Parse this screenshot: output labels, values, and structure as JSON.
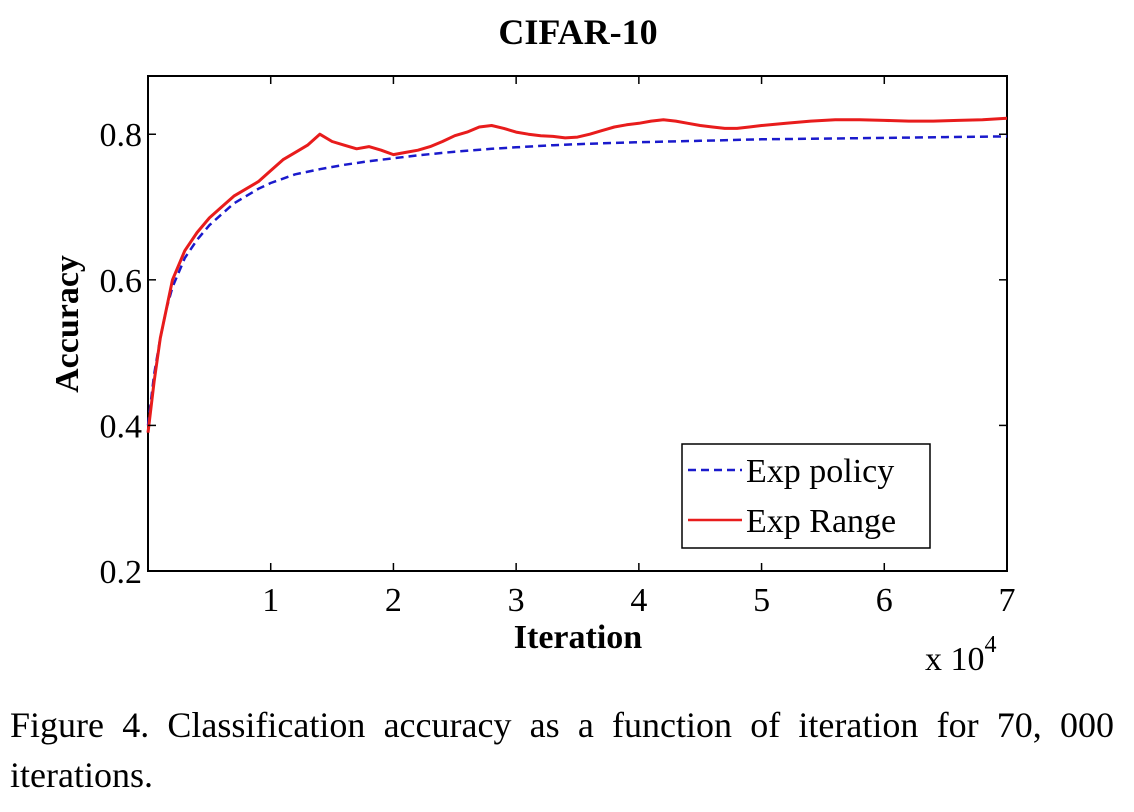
{
  "chart_data": {
    "type": "line",
    "title": "CIFAR-10",
    "xlabel": "Iteration",
    "ylabel": "Accuracy",
    "x_multiplier_label": "x 10",
    "x_multiplier_exponent": "4",
    "xlim": [
      0,
      70000
    ],
    "ylim": [
      0.2,
      0.88
    ],
    "xticks": [
      {
        "value": 10000,
        "label": "1"
      },
      {
        "value": 20000,
        "label": "2"
      },
      {
        "value": 30000,
        "label": "3"
      },
      {
        "value": 40000,
        "label": "4"
      },
      {
        "value": 50000,
        "label": "5"
      },
      {
        "value": 60000,
        "label": "6"
      },
      {
        "value": 70000,
        "label": "7"
      }
    ],
    "yticks": [
      {
        "value": 0.2,
        "label": "0.2"
      },
      {
        "value": 0.4,
        "label": "0.4"
      },
      {
        "value": 0.6,
        "label": "0.6"
      },
      {
        "value": 0.8,
        "label": "0.8"
      }
    ],
    "grid": false,
    "legend_position": "bottom-right",
    "series": [
      {
        "name": "Exp policy",
        "color": "#1a1acc",
        "style": "dashed",
        "x": [
          0,
          500,
          1000,
          1500,
          2000,
          3000,
          4000,
          5000,
          6000,
          7000,
          8000,
          9000,
          10000,
          12000,
          14000,
          16000,
          18000,
          20000,
          22000,
          25000,
          28000,
          30000,
          33000,
          36000,
          40000,
          45000,
          50000,
          55000,
          60000,
          65000,
          70000
        ],
        "y": [
          0.4,
          0.47,
          0.52,
          0.56,
          0.59,
          0.63,
          0.655,
          0.675,
          0.69,
          0.705,
          0.715,
          0.725,
          0.733,
          0.745,
          0.752,
          0.758,
          0.763,
          0.767,
          0.771,
          0.776,
          0.78,
          0.782,
          0.785,
          0.787,
          0.789,
          0.791,
          0.793,
          0.794,
          0.795,
          0.796,
          0.797
        ]
      },
      {
        "name": "Exp Range",
        "color": "#e81c1c",
        "style": "solid",
        "x": [
          0,
          500,
          1000,
          1500,
          2000,
          3000,
          4000,
          5000,
          6000,
          7000,
          8000,
          9000,
          10000,
          11000,
          12000,
          13000,
          14000,
          15000,
          16000,
          17000,
          18000,
          19000,
          20000,
          21000,
          22000,
          23000,
          24000,
          25000,
          26000,
          27000,
          28000,
          29000,
          30000,
          31000,
          32000,
          33000,
          34000,
          35000,
          36000,
          37000,
          38000,
          39000,
          40000,
          41000,
          42000,
          43000,
          44000,
          45000,
          46000,
          47000,
          48000,
          49000,
          50000,
          52000,
          54000,
          56000,
          58000,
          60000,
          62000,
          64000,
          66000,
          68000,
          70000
        ],
        "y": [
          0.39,
          0.46,
          0.52,
          0.56,
          0.6,
          0.64,
          0.665,
          0.685,
          0.7,
          0.715,
          0.725,
          0.735,
          0.75,
          0.765,
          0.775,
          0.785,
          0.8,
          0.79,
          0.785,
          0.78,
          0.783,
          0.778,
          0.772,
          0.775,
          0.778,
          0.783,
          0.79,
          0.798,
          0.803,
          0.81,
          0.812,
          0.808,
          0.803,
          0.8,
          0.798,
          0.797,
          0.795,
          0.796,
          0.8,
          0.805,
          0.81,
          0.813,
          0.815,
          0.818,
          0.82,
          0.818,
          0.815,
          0.812,
          0.81,
          0.808,
          0.808,
          0.81,
          0.812,
          0.815,
          0.818,
          0.82,
          0.82,
          0.819,
          0.818,
          0.818,
          0.819,
          0.82,
          0.822
        ]
      }
    ]
  },
  "caption": "Figure 4. Classification accuracy as a function of iteration for 70, 000 iterations."
}
